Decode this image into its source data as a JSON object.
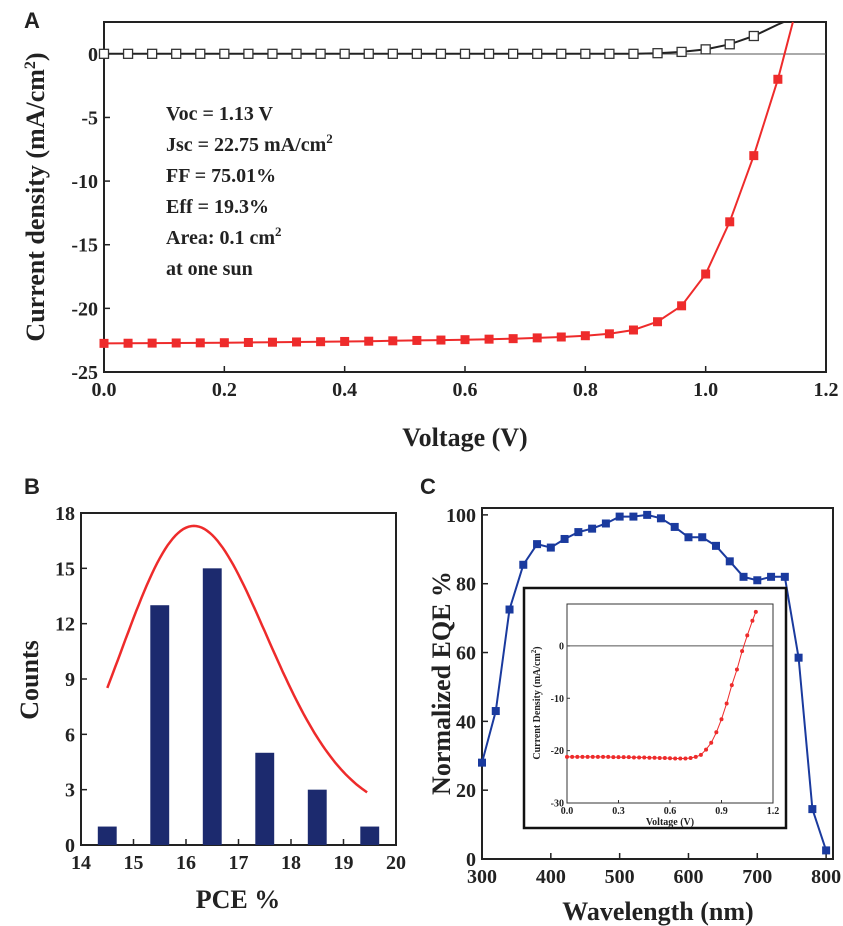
{
  "panel_labels": [
    "A",
    "B",
    "C"
  ],
  "chart_data": [
    {
      "id": "A",
      "type": "line",
      "xlabel": "Voltage (V)",
      "ylabel": "Current density (mA/cm",
      "ylabel_sup": "2",
      "ylabel_close": ")",
      "xlim": [
        0.0,
        1.2
      ],
      "ylim": [
        -25,
        2.5
      ],
      "xticks": [
        "0.0",
        "0.2",
        "0.4",
        "0.6",
        "0.8",
        "1.0",
        "1.2"
      ],
      "yticks": [
        "0",
        "-5",
        "-10",
        "-15",
        "-20",
        "-25"
      ],
      "annotations": [
        {
          "text": "Voc = 1.13 V"
        },
        {
          "text": "Jsc = 22.75 mA/cm",
          "sup": "2"
        },
        {
          "text": "FF = 75.01%"
        },
        {
          "text": "Eff = 19.3%"
        },
        {
          "text": "Area: 0.1 cm",
          "sup": "2"
        },
        {
          "text": "at one sun"
        }
      ],
      "series": [
        {
          "color": "#ee2b2b",
          "marker": "filled-square",
          "points": [
            [
              0.0,
              -22.75
            ],
            [
              0.04,
              -22.74
            ],
            [
              0.08,
              -22.73
            ],
            [
              0.12,
              -22.72
            ],
            [
              0.16,
              -22.71
            ],
            [
              0.2,
              -22.7
            ],
            [
              0.24,
              -22.68
            ],
            [
              0.28,
              -22.66
            ],
            [
              0.32,
              -22.64
            ],
            [
              0.36,
              -22.62
            ],
            [
              0.4,
              -22.6
            ],
            [
              0.44,
              -22.58
            ],
            [
              0.48,
              -22.55
            ],
            [
              0.52,
              -22.52
            ],
            [
              0.56,
              -22.49
            ],
            [
              0.6,
              -22.46
            ],
            [
              0.64,
              -22.42
            ],
            [
              0.68,
              -22.38
            ],
            [
              0.72,
              -22.32
            ],
            [
              0.76,
              -22.25
            ],
            [
              0.8,
              -22.15
            ],
            [
              0.84,
              -22.0
            ],
            [
              0.88,
              -21.7
            ],
            [
              0.92,
              -21.05
            ],
            [
              0.96,
              -19.8
            ],
            [
              1.0,
              -17.3
            ],
            [
              1.04,
              -13.2
            ],
            [
              1.08,
              -8.0
            ],
            [
              1.12,
              -2.0
            ],
            [
              1.145,
              2.5
            ]
          ]
        },
        {
          "color": "#222222",
          "marker": "open-square",
          "points": [
            [
              0.0,
              0.0
            ],
            [
              0.04,
              0.0
            ],
            [
              0.08,
              0.0
            ],
            [
              0.12,
              0.0
            ],
            [
              0.16,
              0.0
            ],
            [
              0.2,
              0.0
            ],
            [
              0.24,
              0.0
            ],
            [
              0.28,
              0.0
            ],
            [
              0.32,
              0.0
            ],
            [
              0.36,
              0.0
            ],
            [
              0.4,
              0.0
            ],
            [
              0.44,
              0.0
            ],
            [
              0.48,
              0.0
            ],
            [
              0.52,
              0.0
            ],
            [
              0.56,
              0.0
            ],
            [
              0.6,
              0.0
            ],
            [
              0.64,
              0.0
            ],
            [
              0.68,
              0.0
            ],
            [
              0.72,
              0.0
            ],
            [
              0.76,
              0.0
            ],
            [
              0.8,
              0.0
            ],
            [
              0.84,
              0.0
            ],
            [
              0.88,
              0.0
            ],
            [
              0.92,
              0.05
            ],
            [
              0.96,
              0.15
            ],
            [
              1.0,
              0.35
            ],
            [
              1.04,
              0.75
            ],
            [
              1.08,
              1.4
            ],
            [
              1.12,
              2.3
            ],
            [
              1.13,
              2.5
            ]
          ]
        }
      ]
    },
    {
      "id": "B",
      "type": "bar",
      "xlabel": "PCE %",
      "ylabel": "Counts",
      "xlim": [
        14,
        20
      ],
      "ylim": [
        0,
        18
      ],
      "xticks": [
        "14",
        "15",
        "16",
        "17",
        "18",
        "19",
        "20"
      ],
      "yticks": [
        "0",
        "3",
        "6",
        "9",
        "12",
        "15",
        "18"
      ],
      "bar_color": "#1c2a6e",
      "fit_color": "#ee2b2b",
      "bars": [
        [
          14.5,
          1
        ],
        [
          15.5,
          13
        ],
        [
          16.5,
          15
        ],
        [
          17.5,
          5
        ],
        [
          18.5,
          3
        ],
        [
          19.5,
          1
        ]
      ],
      "fit": {
        "type": "lognormal",
        "y0": 1.4,
        "peak_x": 16.15,
        "peak_y": 17.3
      }
    },
    {
      "id": "C",
      "type": "line",
      "xlabel": "Wavelength (nm)",
      "ylabel": "Normalized EQE %",
      "xlim": [
        300,
        810
      ],
      "ylim": [
        0,
        102
      ],
      "xticks": [
        "300",
        "400",
        "500",
        "600",
        "700",
        "800"
      ],
      "yticks": [
        "0",
        "20",
        "40",
        "60",
        "80",
        "100"
      ],
      "series": [
        {
          "color": "#1a3a9e",
          "marker": "filled-square",
          "points": [
            [
              300,
              28
            ],
            [
              320,
              43
            ],
            [
              340,
              72.5
            ],
            [
              360,
              85.5
            ],
            [
              380,
              91.5
            ],
            [
              400,
              90.5
            ],
            [
              420,
              93
            ],
            [
              440,
              95
            ],
            [
              460,
              96
            ],
            [
              480,
              97.5
            ],
            [
              500,
              99.5
            ],
            [
              520,
              99.5
            ],
            [
              540,
              100
            ],
            [
              560,
              99
            ],
            [
              580,
              96.5
            ],
            [
              600,
              93.5
            ],
            [
              620,
              93.5
            ],
            [
              640,
              91
            ],
            [
              660,
              86.5
            ],
            [
              680,
              82
            ],
            [
              700,
              81
            ],
            [
              720,
              82
            ],
            [
              740,
              82
            ],
            [
              760,
              58.5
            ],
            [
              780,
              14.5
            ],
            [
              800,
              2.5
            ]
          ]
        }
      ],
      "inset": {
        "type": "line",
        "xlabel": "Voltage (V)",
        "ylabel": "Current Density (mA/cm",
        "ylabel_sup": "2",
        "ylabel_close": ")",
        "xlim": [
          0.0,
          1.2
        ],
        "ylim": [
          -30,
          8
        ],
        "xticks": [
          "0.0",
          "0.3",
          "0.6",
          "0.9",
          "1.2"
        ],
        "yticks": [
          "0",
          "-10",
          "-20",
          "-30"
        ],
        "series": [
          {
            "color": "#ee2b2b",
            "marker": "filled-dot",
            "points": [
              [
                0.0,
                -21.2
              ],
              [
                0.03,
                -21.2
              ],
              [
                0.06,
                -21.2
              ],
              [
                0.09,
                -21.2
              ],
              [
                0.12,
                -21.2
              ],
              [
                0.15,
                -21.2
              ],
              [
                0.18,
                -21.2
              ],
              [
                0.21,
                -21.2
              ],
              [
                0.24,
                -21.2
              ],
              [
                0.27,
                -21.25
              ],
              [
                0.3,
                -21.25
              ],
              [
                0.33,
                -21.25
              ],
              [
                0.36,
                -21.25
              ],
              [
                0.39,
                -21.3
              ],
              [
                0.42,
                -21.3
              ],
              [
                0.45,
                -21.3
              ],
              [
                0.48,
                -21.35
              ],
              [
                0.51,
                -21.35
              ],
              [
                0.54,
                -21.4
              ],
              [
                0.57,
                -21.4
              ],
              [
                0.6,
                -21.45
              ],
              [
                0.63,
                -21.5
              ],
              [
                0.66,
                -21.5
              ],
              [
                0.69,
                -21.5
              ],
              [
                0.72,
                -21.4
              ],
              [
                0.75,
                -21.2
              ],
              [
                0.78,
                -20.8
              ],
              [
                0.81,
                -19.8
              ],
              [
                0.84,
                -18.5
              ],
              [
                0.87,
                -16.5
              ],
              [
                0.9,
                -14
              ],
              [
                0.93,
                -11
              ],
              [
                0.96,
                -7.5
              ],
              [
                0.99,
                -4.5
              ],
              [
                1.02,
                -1
              ],
              [
                1.05,
                2
              ],
              [
                1.08,
                4.8
              ],
              [
                1.1,
                6.5
              ]
            ]
          }
        ]
      }
    }
  ]
}
